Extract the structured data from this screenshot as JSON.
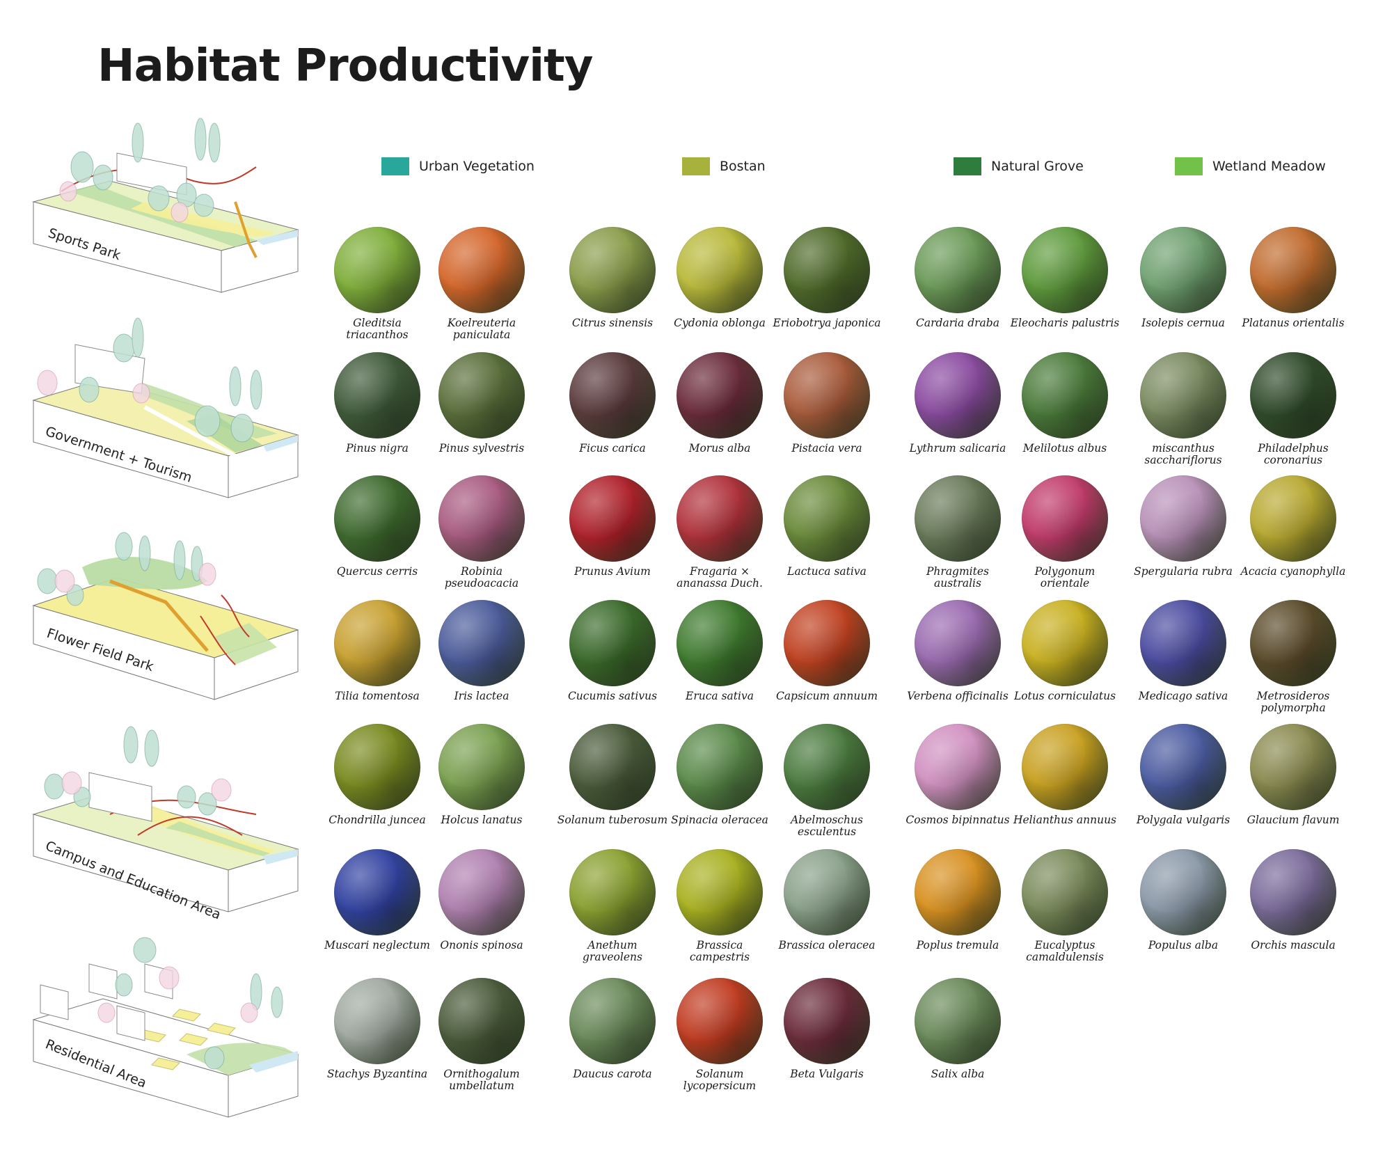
{
  "title": "Habitat Productivity",
  "legend": [
    {
      "label": "Urban Vegetation",
      "color": "#2aa79b"
    },
    {
      "label": "Bostan",
      "color": "#a7b23c"
    },
    {
      "label": "Natural Grove",
      "color": "#2e7d3c"
    },
    {
      "label": "Wetland Meadow",
      "color": "#72c24a"
    }
  ],
  "zones": [
    {
      "label": "Sports Park"
    },
    {
      "label": "Government + Tourism"
    },
    {
      "label": "Flower Field Park"
    },
    {
      "label": "Campus and Education Area"
    },
    {
      "label": "Residential Area"
    }
  ],
  "plants": [
    {
      "name": "Gleditsia\ntriacanthos",
      "category": "urban",
      "color": "#7fae3a"
    },
    {
      "name": "Koelreuteria\npaniculata",
      "category": "urban",
      "color": "#d4652a"
    },
    {
      "name": "Citrus sinensis",
      "category": "bostan",
      "color": "#8a9c4a"
    },
    {
      "name": "Cydonia oblonga",
      "category": "bostan",
      "color": "#b8b83a"
    },
    {
      "name": "Eriobotrya japonica",
      "category": "bostan",
      "color": "#4f6a2a"
    },
    {
      "name": "Cardaria draba",
      "category": "grove",
      "color": "#6b9a58"
    },
    {
      "name": "Eleocharis palustris",
      "category": "grove",
      "color": "#5e9a3c"
    },
    {
      "name": "Isolepis cernua",
      "category": "wetland",
      "color": "#6fa070"
    },
    {
      "name": "Platanus orientalis",
      "category": "wetland",
      "color": "#c06a2c"
    },
    {
      "name": "Pinus nigra",
      "category": "urban",
      "color": "#3f5a3a"
    },
    {
      "name": "Pinus sylvestris",
      "category": "urban",
      "color": "#5a6e3a"
    },
    {
      "name": "Ficus carica",
      "category": "bostan",
      "color": "#5a3a3c"
    },
    {
      "name": "Morus alba",
      "category": "bostan",
      "color": "#6a2a3a"
    },
    {
      "name": "Pistacia vera",
      "category": "bostan",
      "color": "#a85a3a"
    },
    {
      "name": "Lythrum salicaria",
      "category": "grove",
      "color": "#8a4aa0"
    },
    {
      "name": "Melilotus albus",
      "category": "grove",
      "color": "#4a7a3a"
    },
    {
      "name": "miscanthus\nsacchariflorus",
      "category": "wetland",
      "color": "#7a8a60"
    },
    {
      "name": "Philadelphus\ncoronarius",
      "category": "wetland",
      "color": "#2f4a2a"
    },
    {
      "name": "Quercus cerris",
      "category": "urban",
      "color": "#3e6a2e"
    },
    {
      "name": "Robinia\npseudoacacia",
      "category": "urban",
      "color": "#a85a80"
    },
    {
      "name": "Prunus  Avium",
      "category": "bostan",
      "color": "#b0202a"
    },
    {
      "name": "Fragaria ×\nananassa Duch.",
      "category": "bostan",
      "color": "#b0303a"
    },
    {
      "name": "Lactuca sativa",
      "category": "bostan",
      "color": "#6a8a3a"
    },
    {
      "name": "Phragmites australis",
      "category": "grove",
      "color": "#6a7a5a"
    },
    {
      "name": "Polygonum\norientale",
      "category": "grove",
      "color": "#c03a6a"
    },
    {
      "name": "Spergularia rubra",
      "category": "wetland",
      "color": "#b890b8"
    },
    {
      "name": "Acacia cyanophylla",
      "category": "wetland",
      "color": "#b8a830"
    },
    {
      "name": "Tilia tomentosa",
      "category": "urban",
      "color": "#c8a030"
    },
    {
      "name": "Iris lactea",
      "category": "urban",
      "color": "#4a5a9a"
    },
    {
      "name": "Cucumis sativus",
      "category": "bostan",
      "color": "#3a6a2a"
    },
    {
      "name": "Eruca sativa",
      "category": "bostan",
      "color": "#3e7a2e"
    },
    {
      "name": "Capsicum annuum",
      "category": "bostan",
      "color": "#c04020"
    },
    {
      "name": "Verbena officinalis",
      "category": "grove",
      "color": "#9a6ab0"
    },
    {
      "name": "Lotus corniculatus",
      "category": "grove",
      "color": "#c8b020"
    },
    {
      "name": "Medicago sativa",
      "category": "wetland",
      "color": "#4a4aa0"
    },
    {
      "name": "Metrosideros\npolymorpha",
      "category": "wetland",
      "color": "#5a4a2a"
    },
    {
      "name": "Chondrilla juncea",
      "category": "urban",
      "color": "#7a8a20"
    },
    {
      "name": "Holcus lanatus",
      "category": "urban",
      "color": "#7aa050"
    },
    {
      "name": "Solanum tuberosum",
      "category": "bostan",
      "color": "#4a5a3a"
    },
    {
      "name": "Spinacia oleracea",
      "category": "bostan",
      "color": "#5a8a4a"
    },
    {
      "name": "Abelmoschus\nesculentus",
      "category": "bostan",
      "color": "#4a7a3e"
    },
    {
      "name": "Cosmos bipinnatus",
      "category": "grove",
      "color": "#d090c0"
    },
    {
      "name": "Helianthus annuus",
      "category": "grove",
      "color": "#c8a020"
    },
    {
      "name": "Polygala vulgaris",
      "category": "wetland",
      "color": "#4a5aa0"
    },
    {
      "name": "Glaucium flavum",
      "category": "wetland",
      "color": "#8a8a50"
    },
    {
      "name": "Muscari neglectum",
      "category": "urban",
      "color": "#3040a0"
    },
    {
      "name": "Ononis spinosa",
      "category": "urban",
      "color": "#b080b0"
    },
    {
      "name": "Anethum graveolens",
      "category": "bostan",
      "color": "#8aa030"
    },
    {
      "name": "Brassica\ncampestris",
      "category": "bostan",
      "color": "#a8b020"
    },
    {
      "name": "Brassica oleracea",
      "category": "bostan",
      "color": "#8aa08a"
    },
    {
      "name": "Poplus tremula",
      "category": "grove",
      "color": "#d89020"
    },
    {
      "name": "Eucalyptus\ncamaldulensis",
      "category": "grove",
      "color": "#7a8a5a"
    },
    {
      "name": "Populus alba",
      "category": "wetland",
      "color": "#8a98a8"
    },
    {
      "name": "Orchis mascula",
      "category": "wetland",
      "color": "#7a6a9a"
    },
    {
      "name": "Stachys Byzantina",
      "category": "urban",
      "color": "#a0a8a0"
    },
    {
      "name": "Ornithogalum\numbellatum",
      "category": "urban",
      "color": "#4a5a3a"
    },
    {
      "name": "Daucus carota",
      "category": "bostan",
      "color": "#6a8a5a"
    },
    {
      "name": "Solanum\nlycopersicum",
      "category": "bostan",
      "color": "#c03a20"
    },
    {
      "name": "Beta Vulgaris",
      "category": "bostan",
      "color": "#6a2a3a"
    },
    {
      "name": "Salix alba",
      "category": "grove",
      "color": "#6a8a5a"
    }
  ]
}
